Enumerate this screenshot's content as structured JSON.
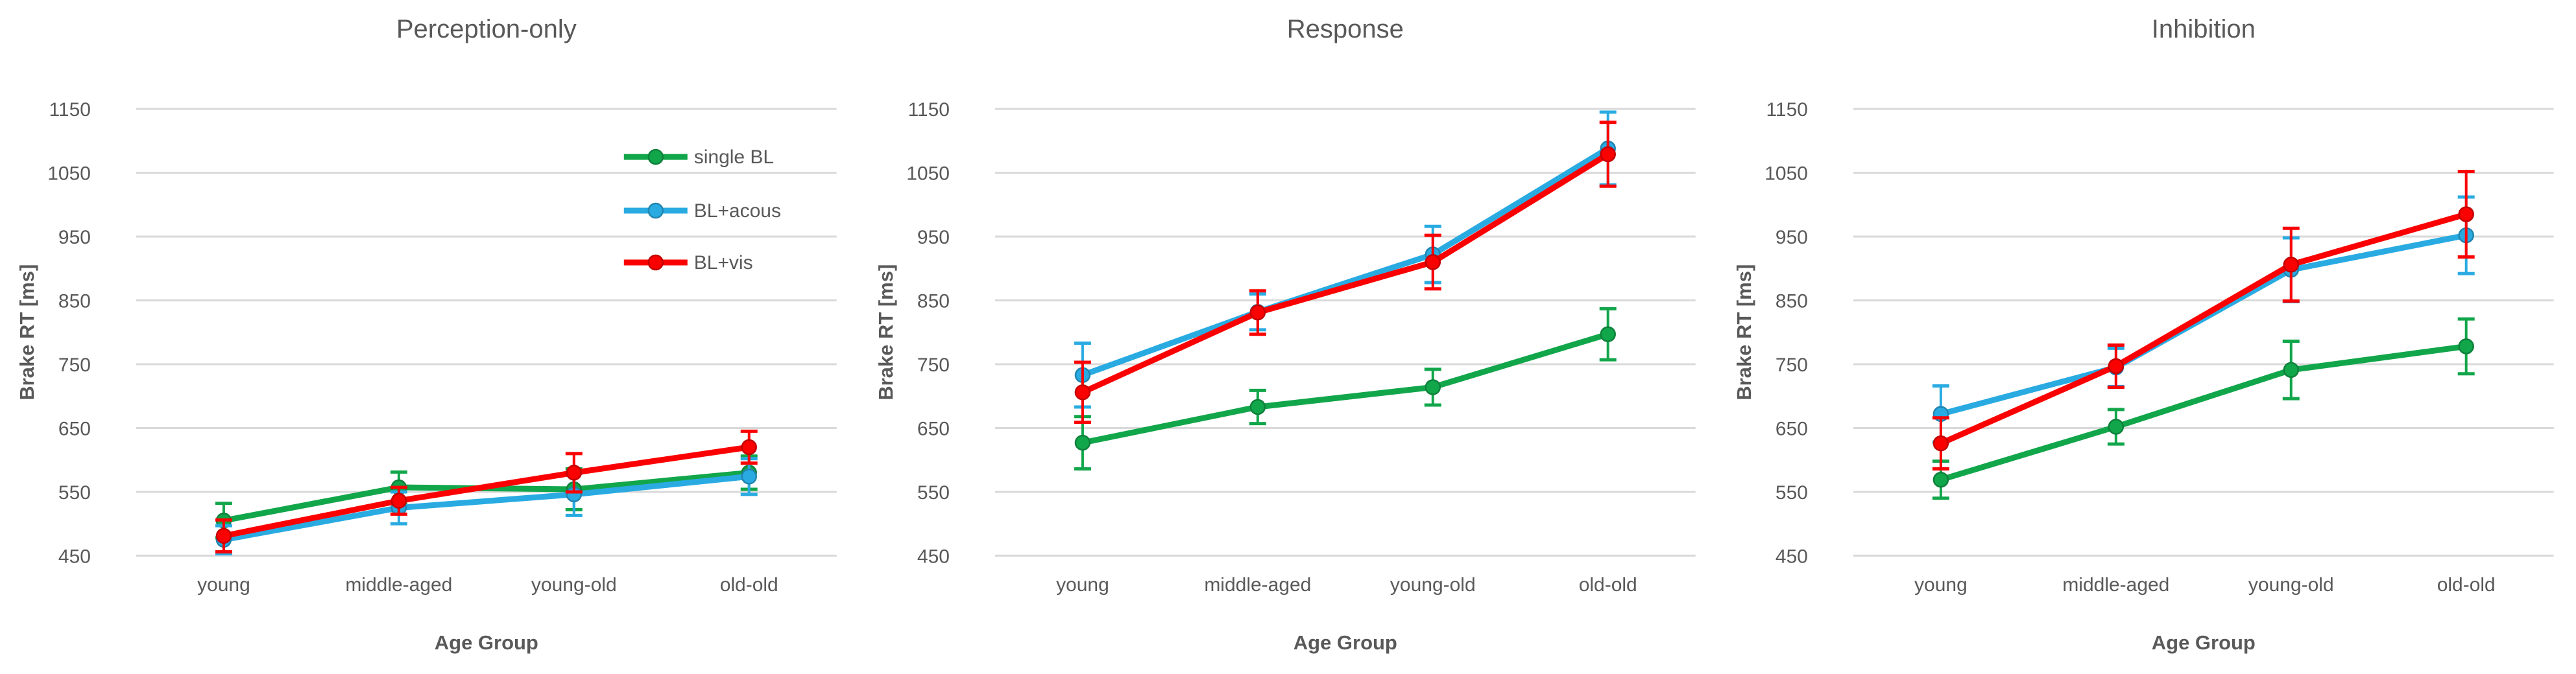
{
  "figure": {
    "background": "#FFFFFF",
    "text_color": "#595959",
    "gridline_color": "#D9D9D9"
  },
  "axes": {
    "y_label": "Brake RT [ms]",
    "x_label": "Age Group",
    "y_ticks": [
      1150,
      1050,
      950,
      850,
      750,
      650,
      550,
      450
    ],
    "ylim": [
      450,
      1150
    ],
    "grid": "horizontal-only"
  },
  "legend": {
    "position": "upper-right-inside-first-panel",
    "items": [
      {
        "label": "single BL",
        "color": "#12A64B"
      },
      {
        "label": "BL+acous",
        "color": "#29ABE2"
      },
      {
        "label": "BL+vis",
        "color": "#FB0000"
      }
    ]
  },
  "chart_data": [
    {
      "type": "line",
      "title": "Perception-only",
      "xlabel": "Age Group",
      "ylabel": "Brake RT [ms]",
      "ylim": [
        450,
        1150
      ],
      "categories": [
        "young",
        "middle-aged",
        "young-old",
        "old-old"
      ],
      "series": [
        {
          "name": "single BL",
          "color": "#12A64B",
          "values": [
            505,
            557,
            554,
            580
          ],
          "errors": [
            27,
            24,
            32,
            26
          ]
        },
        {
          "name": "BL+acous",
          "color": "#29ABE2",
          "values": [
            475,
            525,
            546,
            574
          ],
          "errors": [
            22,
            25,
            33,
            28
          ]
        },
        {
          "name": "BL+vis",
          "color": "#FB0000",
          "values": [
            481,
            536,
            580,
            620
          ],
          "errors": [
            25,
            21,
            30,
            25
          ]
        }
      ]
    },
    {
      "type": "line",
      "title": "Response",
      "xlabel": "Age Group",
      "ylabel": "Brake RT [ms]",
      "ylim": [
        450,
        1150
      ],
      "categories": [
        "young",
        "middle-aged",
        "young-old",
        "old-old"
      ],
      "series": [
        {
          "name": "single BL",
          "color": "#12A64B",
          "values": [
            627,
            683,
            714,
            797
          ],
          "errors": [
            41,
            26,
            28,
            40
          ]
        },
        {
          "name": "BL+acous",
          "color": "#29ABE2",
          "values": [
            733,
            832,
            922,
            1088
          ],
          "errors": [
            50,
            28,
            44,
            57
          ]
        },
        {
          "name": "BL+vis",
          "color": "#FB0000",
          "values": [
            706,
            831,
            910,
            1079
          ],
          "errors": [
            47,
            34,
            42,
            50
          ]
        }
      ]
    },
    {
      "type": "line",
      "title": "Inhibition",
      "xlabel": "Age Group",
      "ylabel": "Brake RT [ms]",
      "ylim": [
        450,
        1150
      ],
      "categories": [
        "young",
        "middle-aged",
        "young-old",
        "old-old"
      ],
      "series": [
        {
          "name": "single BL",
          "color": "#12A64B",
          "values": [
            569,
            652,
            741,
            778
          ],
          "errors": [
            29,
            27,
            45,
            43
          ]
        },
        {
          "name": "BL+acous",
          "color": "#29ABE2",
          "values": [
            672,
            745,
            898,
            952
          ],
          "errors": [
            44,
            30,
            50,
            60
          ]
        },
        {
          "name": "BL+vis",
          "color": "#FB0000",
          "values": [
            626,
            747,
            906,
            985
          ],
          "errors": [
            40,
            33,
            57,
            67
          ]
        }
      ]
    }
  ]
}
